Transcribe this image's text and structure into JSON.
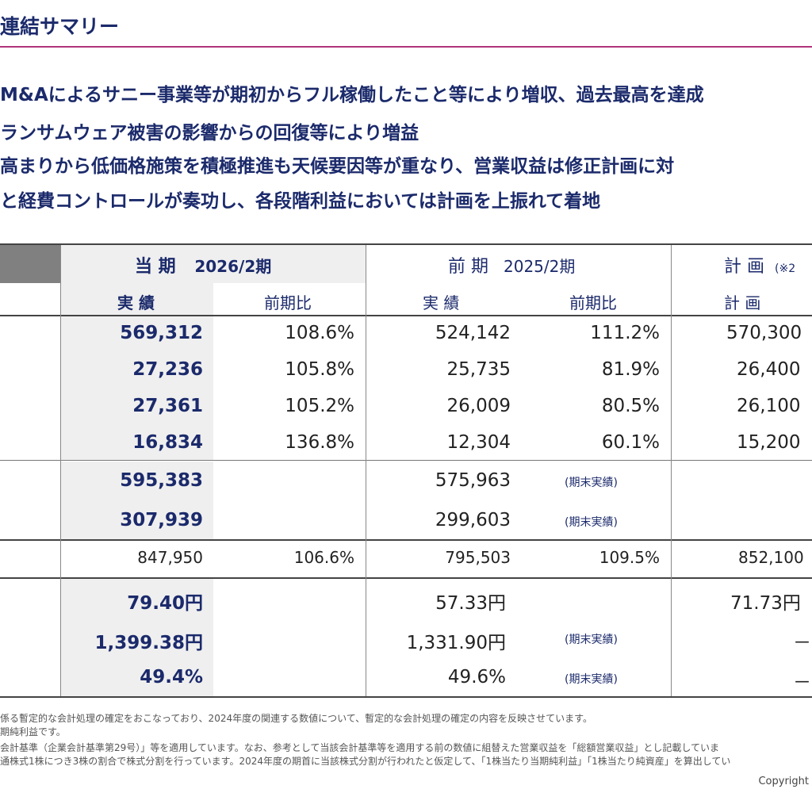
{
  "title": "連結サマリー",
  "bullets": [
    "M&Aによるサニー事業等が期初からフル稼働したこと等により増収、過去最高を達成",
    "ランサムウェア被害の影響からの回復等により増益",
    "高まりから低価格施策を積極推進も天候要因等が重なり、営業収益は修正計画に対",
    "と経費コントロールが奏功し、各段階利益においては計画を上振れて着地"
  ],
  "table": {
    "headers": {
      "current_label": "当 期",
      "current_period": "2026/2期",
      "prev_label": "前 期",
      "prev_period": "2025/2期",
      "plan_label": "計 画",
      "plan_note": "(※2",
      "actual": "実 績",
      "yoy": "前期比",
      "plan": "計 画"
    },
    "rows": [
      {
        "cur": "569,312",
        "cur_yoy": "108.6%",
        "prev": "524,142",
        "prev_yoy": "111.2%",
        "plan": "570,300"
      },
      {
        "cur": "27,236",
        "cur_yoy": "105.8%",
        "prev": "25,735",
        "prev_yoy": "81.9%",
        "plan": "26,400"
      },
      {
        "cur": "27,361",
        "cur_yoy": "105.2%",
        "prev": "26,009",
        "prev_yoy": "80.5%",
        "plan": "26,100"
      },
      {
        "cur": "16,834",
        "cur_yoy": "136.8%",
        "prev": "12,304",
        "prev_yoy": "60.1%",
        "plan": "15,200"
      },
      {
        "cur": "595,383",
        "prev": "575,963",
        "prev_note": "(期末実績)"
      },
      {
        "cur": "307,939",
        "prev": "299,603",
        "prev_note": "(期末実績)"
      },
      {
        "cur": "847,950",
        "cur_yoy": "106.6%",
        "prev": "795,503",
        "prev_yoy": "109.5%",
        "plan": "852,100"
      },
      {
        "cur": "79.40円",
        "prev": "57.33円",
        "plan": "71.73円"
      },
      {
        "cur": "1,399.38円",
        "prev": "1,331.90円",
        "prev_note": "(期末実績)",
        "plan": "－"
      },
      {
        "cur": "49.4%",
        "prev": "49.6%",
        "prev_note": "(期末実績)",
        "plan": "－"
      }
    ]
  },
  "footnotes": [
    "係る暫定的な会計処理の確定をおこなっており、2024年度の関連する数値について、暫定的な会計処理の確定の内容を反映させています。",
    "期純利益です。",
    "会計基準（企業会計基準第29号）」等を適用しています。なお、参考として当該会計基準等を適用する前の数値に組替えた営業収益を「総額営業収益」とし記載していま",
    "通株式1株につき3株の割合で株式分割を行っています。2024年度の期首に当該株式分割が行われたと仮定して、「1株当たり当期純利益」「1株当たり純資産」を算出してい"
  ],
  "copyright": "Copyright"
}
